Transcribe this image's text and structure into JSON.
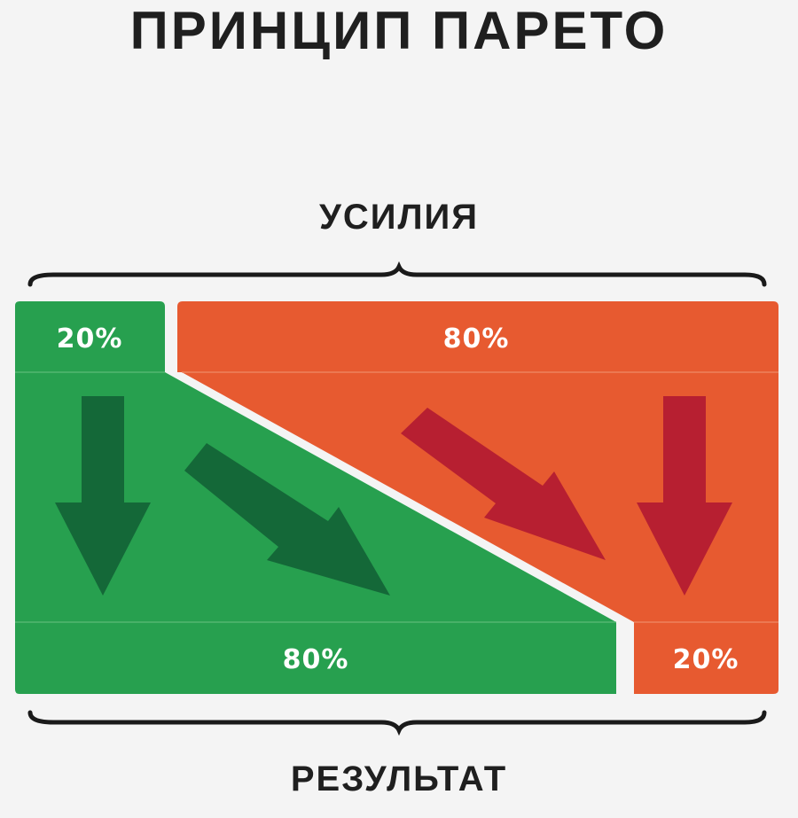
{
  "title": "ПРИНЦИП ПАРЕТО",
  "top_label": "УСИЛИЯ",
  "bottom_label": "РЕЗУЛЬТАТ",
  "effort": {
    "green_label": "20%",
    "orange_label": "80%"
  },
  "result": {
    "green_label": "80%",
    "orange_label": "20%"
  },
  "colors": {
    "background": "#f4f4f4",
    "green": "#27a04f",
    "green_arrow": "#146838",
    "orange": "#e75a30",
    "red_arrow": "#b71f31",
    "text_dark": "#1f1f1f",
    "text_light": "#ffffff"
  }
}
